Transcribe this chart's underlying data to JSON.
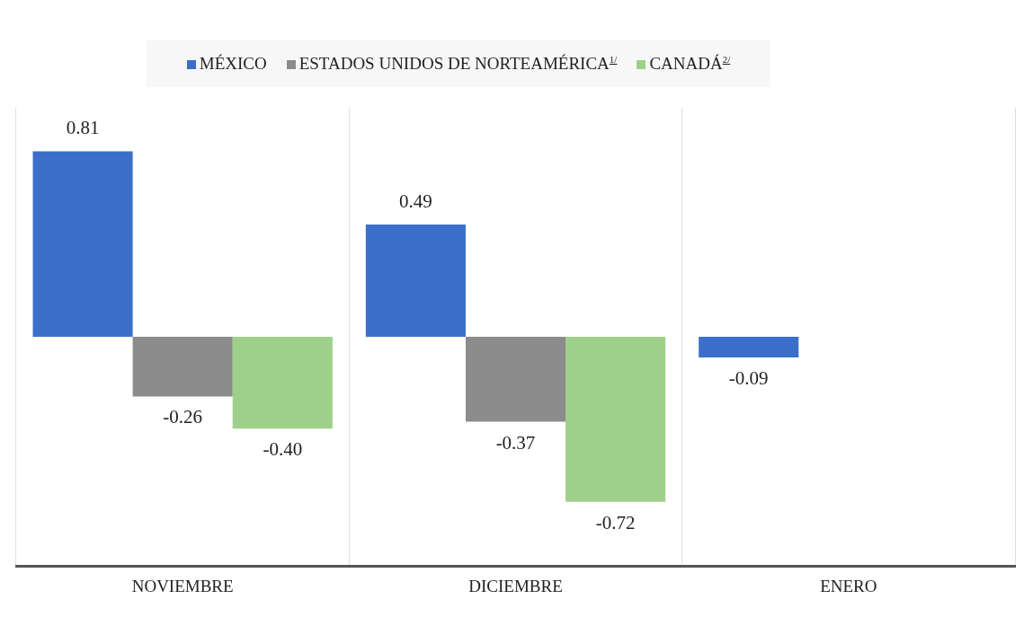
{
  "chart_data": {
    "type": "bar",
    "categories": [
      "NOVIEMBRE",
      "DICIEMBRE",
      "ENERO"
    ],
    "series": [
      {
        "name": "MÉXICO",
        "color": "#3b6fc9",
        "values": [
          0.81,
          0.49,
          -0.09
        ],
        "value_labels": [
          "0.81",
          "0.49",
          "-0.09"
        ]
      },
      {
        "name": "ESTADOS UNIDOS DE NORTEAMÉRICA$^{1/}$",
        "color": "#8c8c8c",
        "values": [
          -0.26,
          -0.37,
          null
        ],
        "value_labels": [
          "-0.26",
          "-0.37",
          null
        ]
      },
      {
        "name": "CANADÁ$^{2/}$",
        "color": "#9fd08a",
        "values": [
          -0.4,
          -0.72,
          null
        ],
        "value_labels": [
          "-0.40",
          "-0.72",
          null
        ]
      }
    ],
    "legend": "top",
    "grid": "x"
  }
}
